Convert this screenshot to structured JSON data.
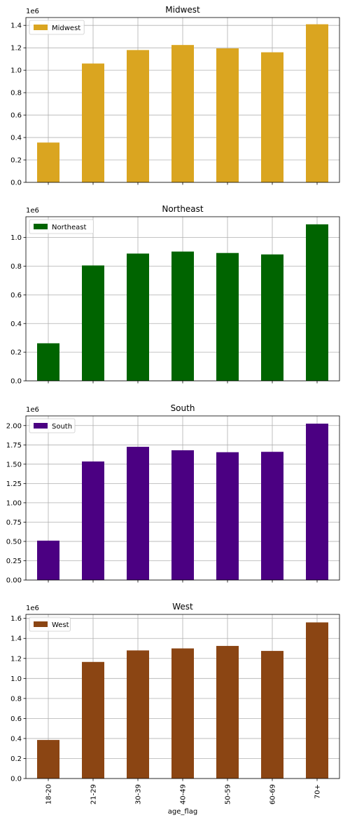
{
  "chart_data": [
    {
      "type": "bar",
      "title": "Midwest",
      "categories": [
        "18-20",
        "21-29",
        "30-39",
        "40-49",
        "50-59",
        "60-69",
        "70+"
      ],
      "series": [
        {
          "name": "Midwest",
          "values": [
            355000,
            1060000,
            1180000,
            1225000,
            1195000,
            1160000,
            1410000
          ]
        }
      ],
      "color": "#DAA520",
      "offset_label": "1e6",
      "ylim": [
        0,
        1470000
      ],
      "yticks": [
        0,
        200000,
        400000,
        600000,
        800000,
        1000000,
        1200000,
        1400000
      ],
      "ytick_labels": [
        "0.0",
        "0.2",
        "0.4",
        "0.6",
        "0.8",
        "1.0",
        "1.2",
        "1.4"
      ],
      "xlabel": "",
      "grid": true,
      "legend": "upper left",
      "show_xticklabels": false
    },
    {
      "type": "bar",
      "title": "Northeast",
      "categories": [
        "18-20",
        "21-29",
        "30-39",
        "40-49",
        "50-59",
        "60-69",
        "70+"
      ],
      "series": [
        {
          "name": "Northeast",
          "values": [
            262000,
            805000,
            888000,
            902000,
            892000,
            882000,
            1092000
          ]
        }
      ],
      "color": "#006400",
      "offset_label": "1e6",
      "ylim": [
        0,
        1145000
      ],
      "yticks": [
        0,
        200000,
        400000,
        600000,
        800000,
        1000000
      ],
      "ytick_labels": [
        "0.0",
        "0.2",
        "0.4",
        "0.6",
        "0.8",
        "1.0"
      ],
      "xlabel": "",
      "grid": true,
      "legend": "upper left",
      "show_xticklabels": false
    },
    {
      "type": "bar",
      "title": "South",
      "categories": [
        "18-20",
        "21-29",
        "30-39",
        "40-49",
        "50-59",
        "60-69",
        "70+"
      ],
      "series": [
        {
          "name": "South",
          "values": [
            510000,
            1535000,
            1725000,
            1680000,
            1655000,
            1660000,
            2025000
          ]
        }
      ],
      "color": "#4B0082",
      "offset_label": "1e6",
      "ylim": [
        0,
        2125000
      ],
      "yticks": [
        0,
        250000,
        500000,
        750000,
        1000000,
        1250000,
        1500000,
        1750000,
        2000000
      ],
      "ytick_labels": [
        "0.00",
        "0.25",
        "0.50",
        "0.75",
        "1.00",
        "1.25",
        "1.50",
        "1.75",
        "2.00"
      ],
      "xlabel": "",
      "grid": true,
      "legend": "upper left",
      "show_xticklabels": false
    },
    {
      "type": "bar",
      "title": "West",
      "categories": [
        "18-20",
        "21-29",
        "30-39",
        "40-49",
        "50-59",
        "60-69",
        "70+"
      ],
      "series": [
        {
          "name": "West",
          "values": [
            385000,
            1165000,
            1280000,
            1300000,
            1325000,
            1275000,
            1560000
          ]
        }
      ],
      "color": "#8B4513",
      "offset_label": "1e6",
      "ylim": [
        0,
        1640000
      ],
      "yticks": [
        0,
        200000,
        400000,
        600000,
        800000,
        1000000,
        1200000,
        1400000,
        1600000
      ],
      "ytick_labels": [
        "0.0",
        "0.2",
        "0.4",
        "0.6",
        "0.8",
        "1.0",
        "1.2",
        "1.4",
        "1.6"
      ],
      "xlabel": "age_flag",
      "grid": true,
      "legend": "upper left",
      "show_xticklabels": true
    }
  ]
}
